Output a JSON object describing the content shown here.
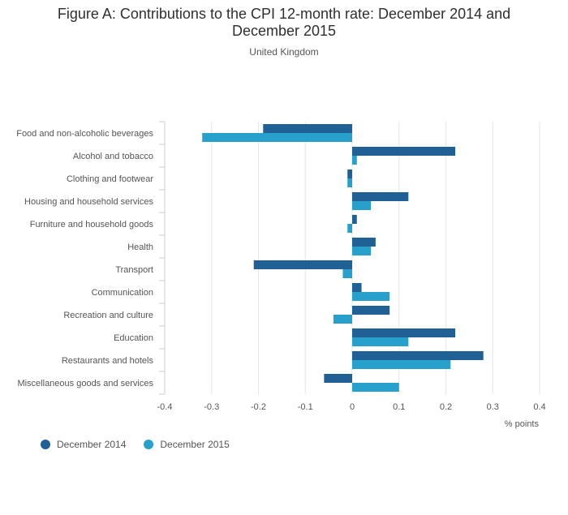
{
  "title": "Figure A: Contributions to the CPI 12-month rate: December 2014 and December 2015",
  "subtitle": "United Kingdom",
  "chart_data": {
    "type": "bar",
    "orientation": "horizontal",
    "title": "Figure A: Contributions to the CPI 12-month rate: December 2014 and December 2015",
    "subtitle": "United Kingdom",
    "xlabel": "% points",
    "ylabel": "",
    "xlim": [
      -0.4,
      0.4
    ],
    "xticks": [
      -0.4,
      -0.3,
      -0.2,
      -0.1,
      0,
      0.1,
      0.2,
      0.3,
      0.4
    ],
    "xtick_labels": [
      "-0.4",
      "-0.3",
      "-0.2",
      "-0.1",
      "0",
      "0.1",
      "0.2",
      "0.3",
      "0.4"
    ],
    "grid": "vertical",
    "legend_position": "bottom-left",
    "categories": [
      "Food and non-alcoholic beverages",
      "Alcohol and tobacco",
      "Clothing and footwear",
      "Housing and household services",
      "Furniture and household goods",
      "Health",
      "Transport",
      "Communication",
      "Recreation and culture",
      "Education",
      "Restaurants and hotels",
      "Miscellaneous goods and services"
    ],
    "series": [
      {
        "name": "December 2014",
        "color": "#206095",
        "values": [
          -0.19,
          0.22,
          -0.01,
          0.12,
          0.01,
          0.05,
          -0.21,
          0.02,
          0.08,
          0.22,
          0.28,
          -0.06
        ]
      },
      {
        "name": "December 2015",
        "color": "#27a0cc",
        "values": [
          -0.32,
          0.01,
          -0.01,
          0.04,
          -0.01,
          0.04,
          -0.02,
          0.08,
          -0.04,
          0.12,
          0.21,
          0.1
        ]
      }
    ]
  }
}
